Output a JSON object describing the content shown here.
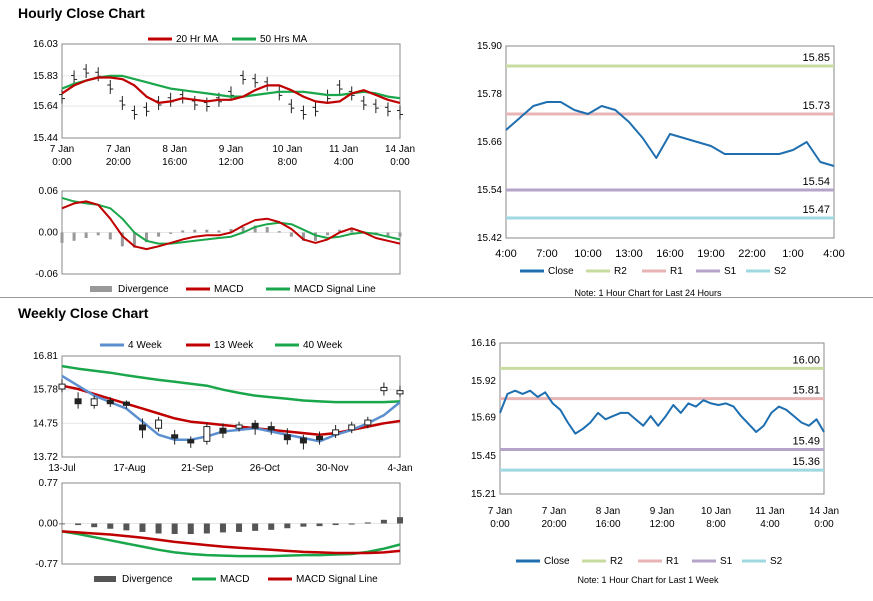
{
  "sections": {
    "hourly_title": "Hourly Close Chart",
    "weekly_title": "Weekly Close Chart"
  },
  "colors": {
    "ma20": "#c00000",
    "ma50": "#1aa64a",
    "macd_red": "#c00000",
    "signal_green": "#1aa64a",
    "close_blue": "#1f6fb0",
    "r2": "#c8dca0",
    "r1": "#e8b4b4",
    "s1": "#b4a4c8",
    "s2": "#9fd8e0",
    "wk4": "#5b8fcf",
    "wk13": "#c00000",
    "wk40": "#1aa64a",
    "divergence_hourly": "#999999",
    "divergence_weekly": "#555555"
  },
  "chart_data": [
    {
      "id": "hourly_price",
      "type": "line",
      "title": "Hourly Close Chart",
      "legend": [
        "20 Hr MA",
        "50 Hrs MA"
      ],
      "yticks": [
        "16.03",
        "15.83",
        "15.64",
        "15.44"
      ],
      "ylim": [
        15.44,
        16.03
      ],
      "xticks": [
        [
          "7 Jan",
          "0:00"
        ],
        [
          "7 Jan",
          "20:00"
        ],
        [
          "8 Jan",
          "16:00"
        ],
        [
          "9 Jan",
          "12:00"
        ],
        [
          "10 Jan",
          "8:00"
        ],
        [
          "11 Jan",
          "4:00"
        ],
        [
          "14 Jan",
          "0:00"
        ]
      ],
      "series": [
        {
          "name": "20 Hr MA",
          "values": [
            15.72,
            15.77,
            15.8,
            15.82,
            15.82,
            15.81,
            15.77,
            15.7,
            15.66,
            15.67,
            15.69,
            15.68,
            15.67,
            15.68,
            15.68,
            15.7,
            15.74,
            15.77,
            15.77,
            15.74,
            15.7,
            15.67,
            15.66,
            15.67,
            15.72,
            15.74,
            15.71,
            15.68,
            15.66
          ]
        },
        {
          "name": "50 Hrs MA",
          "values": [
            15.75,
            15.78,
            15.8,
            15.82,
            15.83,
            15.83,
            15.81,
            15.79,
            15.77,
            15.75,
            15.74,
            15.73,
            15.72,
            15.71,
            15.7,
            15.7,
            15.71,
            15.72,
            15.73,
            15.73,
            15.73,
            15.72,
            15.71,
            15.71,
            15.72,
            15.73,
            15.72,
            15.7,
            15.69
          ]
        }
      ],
      "close": [
        15.7,
        15.82,
        15.86,
        15.84,
        15.76,
        15.66,
        15.6,
        15.62,
        15.66,
        15.68,
        15.7,
        15.66,
        15.65,
        15.68,
        15.72,
        15.82,
        15.8,
        15.78,
        15.72,
        15.64,
        15.6,
        15.62,
        15.7,
        15.76,
        15.72,
        15.66,
        15.64,
        15.62,
        15.6
      ]
    },
    {
      "id": "hourly_macd",
      "type": "line",
      "legend": [
        "Divergence",
        "MACD",
        "MACD Signal Line"
      ],
      "yticks": [
        "0.06",
        "0.00",
        "-0.06"
      ],
      "ylim": [
        -0.06,
        0.06
      ],
      "series": [
        {
          "name": "MACD",
          "values": [
            0.035,
            0.042,
            0.045,
            0.04,
            0.02,
            -0.005,
            -0.02,
            -0.024,
            -0.02,
            -0.015,
            -0.01,
            -0.006,
            -0.004,
            -0.004,
            0.0,
            0.01,
            0.018,
            0.02,
            0.015,
            0.005,
            -0.01,
            -0.015,
            -0.01,
            0.0,
            0.006,
            0.0,
            -0.008,
            -0.012,
            -0.016
          ]
        },
        {
          "name": "MACD Signal Line",
          "values": [
            0.05,
            0.045,
            0.042,
            0.04,
            0.035,
            0.02,
            0.0,
            -0.012,
            -0.016,
            -0.016,
            -0.014,
            -0.012,
            -0.01,
            -0.008,
            -0.006,
            0.0,
            0.008,
            0.012,
            0.014,
            0.012,
            0.004,
            -0.004,
            -0.008,
            -0.006,
            -0.002,
            0.0,
            -0.002,
            -0.006,
            -0.01
          ]
        }
      ],
      "divergence": [
        -0.015,
        -0.012,
        -0.008,
        -0.004,
        -0.01,
        -0.02,
        -0.022,
        -0.014,
        -0.006,
        -0.002,
        0.003,
        0.004,
        0.004,
        0.003,
        0.005,
        0.008,
        0.01,
        0.008,
        0.002,
        -0.006,
        -0.012,
        -0.012,
        -0.004,
        0.004,
        0.006,
        0.002,
        -0.004,
        -0.006,
        -0.006
      ]
    },
    {
      "id": "hourly_close_24h",
      "type": "line",
      "note": "Note: 1 Hour Chart for Last 24 Hours",
      "legend": [
        "Close",
        "R2",
        "R1",
        "S1",
        "S2"
      ],
      "yticks": [
        "15.90",
        "15.78",
        "15.66",
        "15.54",
        "15.42"
      ],
      "ylim": [
        15.42,
        15.9
      ],
      "xticks": [
        "4:00",
        "7:00",
        "10:00",
        "13:00",
        "16:00",
        "19:00",
        "22:00",
        "1:00",
        "4:00"
      ],
      "close": [
        15.69,
        15.72,
        15.75,
        15.76,
        15.76,
        15.74,
        15.73,
        15.75,
        15.74,
        15.71,
        15.67,
        15.62,
        15.68,
        15.67,
        15.66,
        15.65,
        15.63,
        15.63,
        15.63,
        15.63,
        15.63,
        15.64,
        15.66,
        15.61,
        15.6
      ],
      "levels": {
        "R2": 15.85,
        "R1": 15.73,
        "S1": 15.54,
        "S2": 15.47
      },
      "level_labels": {
        "R2": "15.85",
        "R1": "15.73",
        "S1": "15.54",
        "S2": "15.47"
      }
    },
    {
      "id": "weekly_price",
      "type": "line",
      "title": "Weekly Close Chart",
      "legend": [
        "4 Week",
        "13 Week",
        "40 Week"
      ],
      "yticks": [
        "16.81",
        "15.78",
        "14.75",
        "13.72"
      ],
      "ylim": [
        13.72,
        16.81
      ],
      "xticks": [
        "13-Jul",
        "17-Aug",
        "21-Sep",
        "26-Oct",
        "30-Nov",
        "4-Jan"
      ],
      "series": [
        {
          "name": "4 Week",
          "values": [
            16.2,
            15.9,
            15.6,
            15.4,
            15.2,
            14.8,
            14.4,
            14.25,
            14.25,
            14.35,
            14.5,
            14.55,
            14.6,
            14.5,
            14.4,
            14.3,
            14.2,
            14.4,
            14.55,
            14.75,
            15.0,
            15.4
          ]
        },
        {
          "name": "13 Week",
          "values": [
            15.9,
            15.8,
            15.65,
            15.5,
            15.35,
            15.2,
            15.05,
            14.9,
            14.8,
            14.75,
            14.7,
            14.65,
            14.6,
            14.55,
            14.5,
            14.45,
            14.4,
            14.45,
            14.55,
            14.65,
            14.75,
            14.82
          ]
        },
        {
          "name": "40 Week",
          "values": [
            16.5,
            16.42,
            16.36,
            16.3,
            16.22,
            16.15,
            16.08,
            16.02,
            15.96,
            15.9,
            15.78,
            15.68,
            15.6,
            15.55,
            15.5,
            15.45,
            15.42,
            15.4,
            15.4,
            15.4,
            15.4,
            15.42
          ]
        }
      ],
      "candles": [
        {
          "o": 15.8,
          "c": 15.95,
          "h": 16.1,
          "l": 15.7
        },
        {
          "o": 15.5,
          "c": 15.35,
          "h": 15.7,
          "l": 15.2
        },
        {
          "o": 15.3,
          "c": 15.5,
          "h": 15.6,
          "l": 15.2
        },
        {
          "o": 15.45,
          "c": 15.35,
          "h": 15.55,
          "l": 15.25
        },
        {
          "o": 15.4,
          "c": 15.3,
          "h": 15.45,
          "l": 15.2
        },
        {
          "o": 14.7,
          "c": 14.55,
          "h": 14.9,
          "l": 14.3
        },
        {
          "o": 14.6,
          "c": 14.85,
          "h": 14.95,
          "l": 14.5
        },
        {
          "o": 14.4,
          "c": 14.3,
          "h": 14.55,
          "l": 14.1
        },
        {
          "o": 14.25,
          "c": 14.15,
          "h": 14.35,
          "l": 14.0
        },
        {
          "o": 14.2,
          "c": 14.65,
          "h": 14.75,
          "l": 14.1
        },
        {
          "o": 14.6,
          "c": 14.45,
          "h": 14.75,
          "l": 14.3
        },
        {
          "o": 14.6,
          "c": 14.7,
          "h": 14.8,
          "l": 14.5
        },
        {
          "o": 14.75,
          "c": 14.6,
          "h": 14.85,
          "l": 14.4
        },
        {
          "o": 14.65,
          "c": 14.55,
          "h": 14.8,
          "l": 14.4
        },
        {
          "o": 14.4,
          "c": 14.25,
          "h": 14.6,
          "l": 14.1
        },
        {
          "o": 14.3,
          "c": 14.15,
          "h": 14.4,
          "l": 13.95
        },
        {
          "o": 14.35,
          "c": 14.25,
          "h": 14.5,
          "l": 14.1
        },
        {
          "o": 14.4,
          "c": 14.55,
          "h": 14.7,
          "l": 14.3
        },
        {
          "o": 14.55,
          "c": 14.7,
          "h": 14.8,
          "l": 14.45
        },
        {
          "o": 14.7,
          "c": 14.85,
          "h": 14.95,
          "l": 14.6
        },
        {
          "o": 15.75,
          "c": 15.85,
          "h": 16.0,
          "l": 15.6
        },
        {
          "o": 15.65,
          "c": 15.75,
          "h": 15.9,
          "l": 15.55
        }
      ]
    },
    {
      "id": "weekly_macd",
      "type": "line",
      "legend": [
        "Divergence",
        "MACD",
        "MACD Signal Line"
      ],
      "yticks": [
        "0.77",
        "0.00",
        "-0.77"
      ],
      "ylim": [
        -0.77,
        0.77
      ],
      "series": [
        {
          "name": "MACD",
          "values": [
            -0.15,
            -0.2,
            -0.26,
            -0.32,
            -0.38,
            -0.44,
            -0.5,
            -0.55,
            -0.58,
            -0.6,
            -0.61,
            -0.62,
            -0.62,
            -0.62,
            -0.61,
            -0.6,
            -0.6,
            -0.59,
            -0.58,
            -0.54,
            -0.48,
            -0.4
          ]
        },
        {
          "name": "MACD Signal Line",
          "values": [
            -0.15,
            -0.17,
            -0.19,
            -0.21,
            -0.24,
            -0.27,
            -0.31,
            -0.35,
            -0.38,
            -0.41,
            -0.44,
            -0.46,
            -0.48,
            -0.5,
            -0.52,
            -0.54,
            -0.55,
            -0.56,
            -0.56,
            -0.56,
            -0.55,
            -0.52
          ]
        }
      ],
      "divergence": [
        0.0,
        -0.03,
        -0.07,
        -0.1,
        -0.13,
        -0.16,
        -0.19,
        -0.2,
        -0.2,
        -0.19,
        -0.17,
        -0.16,
        -0.14,
        -0.12,
        -0.09,
        -0.06,
        -0.05,
        -0.03,
        -0.02,
        0.02,
        0.07,
        0.12
      ]
    },
    {
      "id": "weekly_close_1w",
      "type": "line",
      "note": "Note: 1 Hour Chart for Last 1 Week",
      "legend": [
        "Close",
        "R2",
        "R1",
        "S1",
        "S2"
      ],
      "yticks": [
        "16.16",
        "15.92",
        "15.69",
        "15.45",
        "15.21"
      ],
      "ylim": [
        15.21,
        16.16
      ],
      "xticks": [
        [
          "7 Jan",
          "0:00"
        ],
        [
          "7 Jan",
          "20:00"
        ],
        [
          "8 Jan",
          "16:00"
        ],
        [
          "9 Jan",
          "12:00"
        ],
        [
          "10 Jan",
          "8:00"
        ],
        [
          "11 Jan",
          "4:00"
        ],
        [
          "14 Jan",
          "0:00"
        ]
      ],
      "close": [
        15.72,
        15.84,
        15.86,
        15.84,
        15.86,
        15.82,
        15.85,
        15.78,
        15.74,
        15.66,
        15.59,
        15.62,
        15.66,
        15.72,
        15.68,
        15.7,
        15.72,
        15.72,
        15.68,
        15.64,
        15.7,
        15.64,
        15.7,
        15.77,
        15.72,
        15.78,
        15.76,
        15.8,
        15.78,
        15.77,
        15.78,
        15.76,
        15.7,
        15.65,
        15.6,
        15.64,
        15.72,
        15.76,
        15.74,
        15.7,
        15.66,
        15.64,
        15.68,
        15.6
      ],
      "levels": {
        "R2": 16.0,
        "R1": 15.81,
        "S1": 15.49,
        "S2": 15.36
      },
      "level_labels": {
        "R2": "16.00",
        "R1": "15.81",
        "S1": "15.49",
        "S2": "15.36"
      }
    }
  ]
}
